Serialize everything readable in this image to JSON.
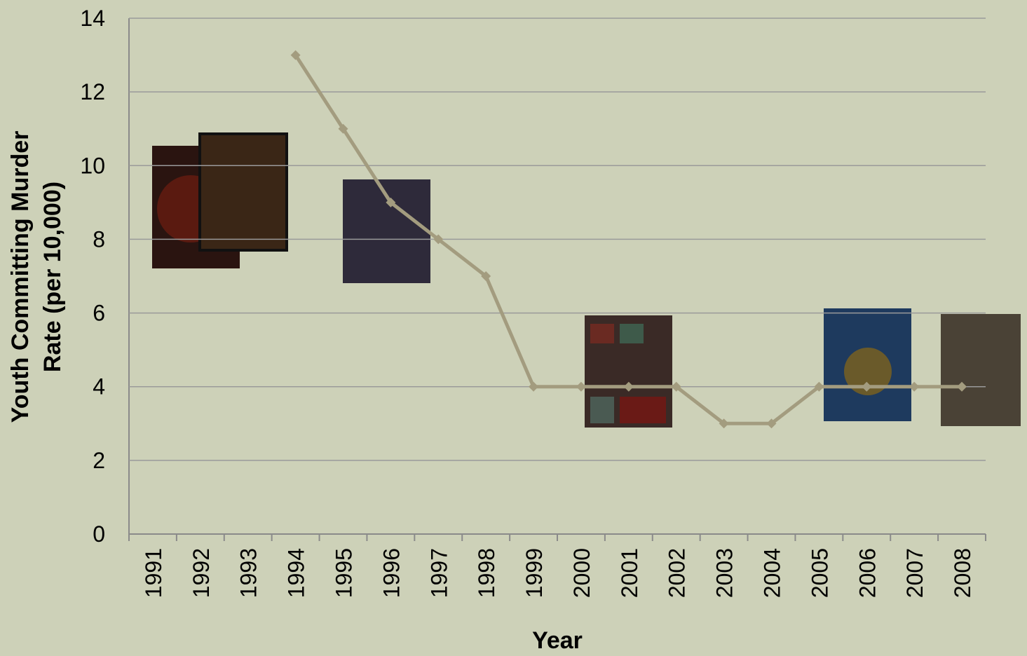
{
  "chart_data": {
    "type": "line",
    "x_label": "Year",
    "y_label": [
      "Youth Committing Murder",
      "Rate (per 10,000)"
    ],
    "categories": [
      "1991",
      "1992",
      "1993",
      "1994",
      "1995",
      "1996",
      "1997",
      "1998",
      "1999",
      "2000",
      "2001",
      "2002",
      "2003",
      "2004",
      "2005",
      "2006",
      "2007",
      "2008"
    ],
    "values": [
      null,
      null,
      null,
      13,
      11,
      9,
      8,
      7,
      4,
      4,
      4,
      4,
      3,
      3,
      4,
      4,
      4,
      4
    ],
    "color": "#a39c7f",
    "ylim": [
      0,
      14
    ],
    "yticks": [
      0,
      2,
      4,
      6,
      8,
      10,
      12,
      14
    ],
    "grid": true
  }
}
